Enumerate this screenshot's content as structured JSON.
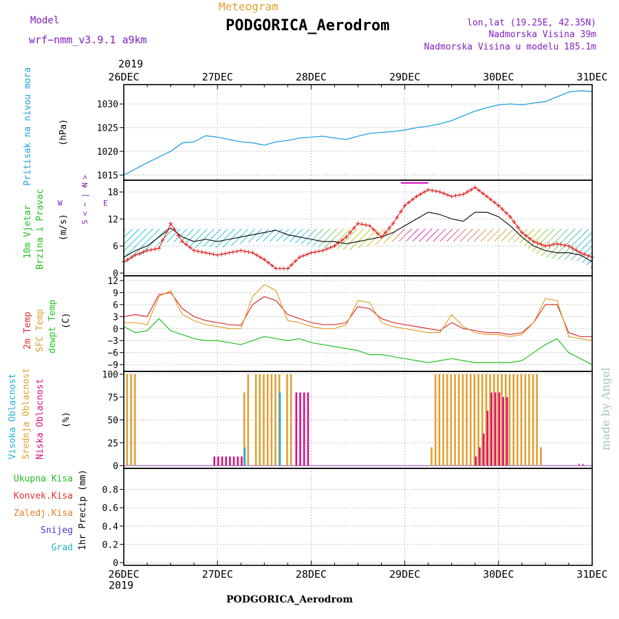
{
  "colors": {
    "pressure": "#1ea0e0",
    "wind_gust": "#000000",
    "wind_10m": "#e02020",
    "temp_2m": "#d83030",
    "temp_sfc": "#e0a030",
    "dewpoint": "#20c020",
    "cloud_high": "#20b0e0",
    "cloud_mid": "#e0a030",
    "cloud_low": "#d81080",
    "title": "#000000",
    "model": "#8020c0",
    "meteogram": "#e0a030",
    "location": "#8020c0",
    "label_green": "#20c020",
    "label_red": "#e03030",
    "label_orange": "#e08030",
    "label_blue": "#4040d0",
    "label_teal": "#20b0c0",
    "watermark": "#a0c8b0"
  },
  "header": {
    "model_label": "Model",
    "model_name": "wrf−nmm_v3.9.1  a9km",
    "meteogram_label": "Meteogram",
    "station_title": "PODGORICA_Aerodrom",
    "coords": "lon,lat (19.25E, 42.35N)",
    "elevation": "Nadmorska Visina 39m",
    "model_elevation": "Nadmorska Visina u modelu 185.1m"
  },
  "footer": {
    "station_title": "PODGORICA_Aerodrom",
    "watermark": "made by Angel"
  },
  "time_axis": {
    "year_top": "2019",
    "year_bottom": "2019",
    "days": [
      "26DEC",
      "27DEC",
      "28DEC",
      "29DEC",
      "30DEC",
      "31DEC"
    ]
  },
  "panel_labels": {
    "pressure": {
      "name": "Pritisak na nivou mora",
      "unit": "(hPa)"
    },
    "wind": {
      "name1": "10m Vjetar",
      "name2": "Brzina i Pravac",
      "unit": "(m/s)",
      "compass_n": "N",
      "compass_s": "S",
      "compass_w": "W",
      "compass_e": "E",
      "compass_arrows": "< − | − >"
    },
    "temp": {
      "t2m": "2m Temp",
      "sfc": "SFC Temp",
      "dew": "dewpt Temp",
      "unit": "(C)"
    },
    "cloud": {
      "high": "Visoka Oblacnost",
      "mid": "Srednja Oblacnost",
      "low": "Niska Oblacnost",
      "unit": "(%)"
    },
    "precip": {
      "total": "Ukupna Kisa",
      "conv": "Konvek.Kisa",
      "freeze": "Zaledj.Kisa",
      "snow": "Snijeg",
      "hail": "Grad",
      "unit": "1hr Precip (mm)"
    }
  },
  "chart_data": [
    {
      "type": "line",
      "panel": "pressure",
      "ylabel": "(hPa)",
      "ylim": [
        1014.5,
        1033.5
      ],
      "yticks": [
        1015,
        1020,
        1025,
        1030
      ],
      "x_hours": [
        0,
        3,
        6,
        9,
        12,
        15,
        18,
        21,
        24,
        27,
        30,
        33,
        36,
        39,
        42,
        45,
        48,
        51,
        54,
        57,
        60,
        63,
        66,
        69,
        72,
        75,
        78,
        81,
        84,
        87,
        90,
        93,
        96,
        99,
        102,
        105,
        108,
        111,
        114,
        117,
        120
      ],
      "series": [
        {
          "values": [
            1015.0,
            1016.3,
            1017.6,
            1018.8,
            1020.0,
            1021.8,
            1022.0,
            1023.3,
            1023.0,
            1022.5,
            1022.0,
            1021.8,
            1021.3,
            1022.0,
            1022.3,
            1022.8,
            1023.0,
            1023.2,
            1022.8,
            1022.5,
            1023.2,
            1023.8,
            1024.0,
            1024.2,
            1024.5,
            1025.0,
            1025.3,
            1025.8,
            1026.5,
            1027.5,
            1028.5,
            1029.2,
            1029.8,
            1030.0,
            1029.8,
            1030.2,
            1030.5,
            1031.5,
            1032.5,
            1032.8,
            1032.6
          ]
        }
      ]
    },
    {
      "type": "line",
      "panel": "wind",
      "ylabel": "(m/s)",
      "ylim": [
        0,
        20
      ],
      "yticks": [
        0,
        6,
        12,
        18
      ],
      "x_hours": [
        0,
        3,
        6,
        9,
        12,
        15,
        18,
        21,
        24,
        27,
        30,
        33,
        36,
        39,
        42,
        45,
        48,
        51,
        54,
        57,
        60,
        63,
        66,
        69,
        72,
        75,
        78,
        81,
        84,
        87,
        90,
        93,
        96,
        99,
        102,
        105,
        108,
        111,
        114,
        117,
        120
      ],
      "series": [
        {
          "name": "10m Vjetar",
          "values": [
            2.5,
            4.0,
            5.0,
            5.5,
            11.0,
            7.0,
            5.0,
            4.5,
            4.0,
            4.5,
            5.0,
            4.5,
            3.0,
            1.0,
            1.0,
            3.5,
            4.5,
            5.0,
            6.0,
            8.0,
            11.0,
            10.5,
            8.0,
            11.0,
            15.0,
            17.0,
            18.5,
            18.0,
            17.0,
            17.5,
            19.0,
            17.0,
            15.0,
            12.5,
            9.0,
            7.0,
            6.0,
            6.5,
            6.0,
            4.5,
            3.5
          ]
        },
        {
          "name": "gust",
          "values": [
            3.5,
            5.0,
            6.0,
            8.0,
            10.0,
            8.0,
            7.0,
            7.5,
            7.0,
            7.5,
            8.0,
            8.5,
            9.0,
            9.5,
            8.5,
            8.0,
            7.5,
            7.0,
            7.0,
            6.5,
            7.0,
            7.5,
            8.0,
            9.0,
            10.5,
            12.0,
            13.5,
            13.0,
            12.0,
            11.5,
            13.5,
            13.5,
            12.5,
            10.5,
            8.0,
            6.0,
            5.0,
            4.5,
            4.5,
            4.0,
            2.5
          ]
        }
      ]
    },
    {
      "type": "line",
      "panel": "temperature",
      "ylabel": "(C)",
      "ylim": [
        -10,
        12.5
      ],
      "yticks": [
        -9,
        -6,
        -3,
        0,
        3,
        6,
        9,
        12
      ],
      "x_hours": [
        0,
        3,
        6,
        9,
        12,
        15,
        18,
        21,
        24,
        27,
        30,
        33,
        36,
        39,
        42,
        45,
        48,
        51,
        54,
        57,
        60,
        63,
        66,
        69,
        72,
        75,
        78,
        81,
        84,
        87,
        90,
        93,
        96,
        99,
        102,
        105,
        108,
        111,
        114,
        117,
        120
      ],
      "series": [
        {
          "name": "2m Temp",
          "values": [
            3.0,
            3.5,
            3.0,
            8.5,
            9.0,
            5.0,
            3.0,
            2.0,
            1.5,
            1.0,
            0.8,
            6.0,
            8.0,
            7.0,
            3.5,
            2.5,
            1.5,
            1.0,
            1.0,
            1.5,
            5.5,
            5.0,
            2.5,
            1.5,
            1.0,
            0.5,
            0.0,
            -0.5,
            1.5,
            0.0,
            -0.5,
            -1.0,
            -1.0,
            -1.5,
            -1.0,
            1.5,
            6.0,
            6.0,
            -1.0,
            -2.0,
            -2.0
          ]
        },
        {
          "name": "SFC Temp",
          "values": [
            1.5,
            1.5,
            1.0,
            8.0,
            9.5,
            3.5,
            2.0,
            1.0,
            0.5,
            0.0,
            0.0,
            8.0,
            11.0,
            9.5,
            2.0,
            1.5,
            0.5,
            0.0,
            0.0,
            1.0,
            7.0,
            6.5,
            1.5,
            0.5,
            0.0,
            -0.5,
            -1.0,
            -1.0,
            3.5,
            0.5,
            -1.0,
            -1.5,
            -1.5,
            -2.0,
            -1.5,
            1.5,
            7.5,
            7.0,
            -2.0,
            -2.5,
            -3.0
          ]
        },
        {
          "name": "dewpt Temp",
          "values": [
            0.5,
            -1.0,
            -0.5,
            2.5,
            -0.5,
            -1.5,
            -2.5,
            -3.0,
            -3.0,
            -3.5,
            -4.0,
            -3.0,
            -2.0,
            -2.5,
            -3.0,
            -2.5,
            -3.5,
            -4.0,
            -4.5,
            -5.0,
            -5.5,
            -6.5,
            -6.5,
            -7.0,
            -7.5,
            -8.0,
            -8.5,
            -8.0,
            -7.5,
            -8.0,
            -8.5,
            -8.5,
            -8.5,
            -8.5,
            -8.0,
            -6.0,
            -4.0,
            -2.5,
            -6.0,
            -7.5,
            -9.0
          ]
        }
      ]
    },
    {
      "type": "bar",
      "panel": "cloud",
      "ylabel": "(%)",
      "ylim": [
        0,
        100
      ],
      "yticks": [
        0,
        25,
        50,
        75,
        100
      ],
      "x_hours": [
        1,
        2,
        3,
        4,
        5,
        17,
        18,
        19,
        20,
        21,
        22,
        23,
        24,
        25,
        26,
        27,
        28,
        29,
        30,
        31,
        32,
        33,
        34,
        35,
        36,
        37,
        38,
        39,
        40,
        41,
        42,
        43,
        44,
        45,
        46,
        47,
        48,
        49,
        50,
        51,
        52,
        53,
        54,
        55,
        56,
        57,
        58,
        59,
        60,
        61,
        62,
        63,
        64,
        65,
        66,
        67,
        68,
        69,
        70,
        71,
        72,
        73,
        74,
        75,
        76,
        77,
        78,
        79,
        80,
        81,
        82,
        83,
        84,
        85,
        86,
        87,
        88,
        89,
        90,
        91,
        92,
        93,
        94,
        95,
        96,
        97,
        98,
        99,
        100,
        101,
        102,
        103,
        104,
        105,
        106,
        107,
        108,
        109,
        110,
        111,
        112,
        113,
        114,
        115,
        116,
        117
      ],
      "series": [
        {
          "name": "Visoka Oblacnost",
          "values": [
            0,
            0,
            0,
            0,
            0,
            0,
            0,
            0,
            0,
            0,
            0,
            0,
            0,
            0,
            0,
            0,
            0,
            0,
            0,
            20,
            0,
            0,
            0,
            0,
            0,
            0,
            0,
            0,
            80,
            0,
            0,
            0,
            0,
            0,
            0,
            0,
            0,
            0,
            0,
            0,
            0,
            0,
            0,
            0,
            0,
            0,
            0,
            0,
            0,
            0,
            0,
            0,
            0,
            0,
            0,
            0,
            0,
            0,
            0,
            0,
            0,
            0,
            0,
            0,
            0,
            0,
            0,
            0,
            0,
            0,
            0,
            0,
            0,
            0,
            0,
            0,
            0,
            0,
            0,
            0,
            0,
            0,
            0,
            0,
            0,
            0,
            0,
            0,
            0,
            0,
            0,
            0,
            0,
            0,
            0,
            0,
            0,
            0,
            0,
            0,
            0,
            0,
            0,
            0,
            0,
            0
          ]
        },
        {
          "name": "Srednja Oblacnost",
          "values": [
            100,
            100,
            100,
            0,
            0,
            0,
            0,
            0,
            0,
            0,
            0,
            0,
            0,
            0,
            0,
            0,
            0,
            0,
            0,
            80,
            100,
            0,
            100,
            100,
            100,
            100,
            100,
            100,
            100,
            0,
            100,
            100,
            0,
            0,
            0,
            0,
            0,
            0,
            0,
            0,
            0,
            0,
            0,
            0,
            0,
            0,
            0,
            0,
            0,
            0,
            0,
            0,
            0,
            0,
            0,
            0,
            0,
            0,
            0,
            0,
            0,
            0,
            0,
            0,
            0,
            0,
            0,
            20,
            100,
            100,
            100,
            100,
            100,
            100,
            100,
            100,
            100,
            100,
            100,
            100,
            100,
            100,
            100,
            100,
            100,
            100,
            100,
            100,
            100,
            100,
            100,
            100,
            100,
            100,
            100,
            20,
            0,
            0,
            0,
            0,
            0,
            0,
            0,
            0,
            0,
            0
          ]
        },
        {
          "name": "Niska Oblacnost",
          "values": [
            0,
            0,
            0,
            0,
            0,
            0,
            0,
            0,
            0,
            0,
            0,
            10,
            10,
            10,
            10,
            10,
            10,
            10,
            10,
            0,
            0,
            0,
            0,
            0,
            0,
            0,
            0,
            0,
            0,
            0,
            0,
            0,
            80,
            80,
            80,
            80,
            0,
            0,
            0,
            0,
            0,
            0,
            0,
            0,
            0,
            0,
            0,
            0,
            0,
            0,
            0,
            0,
            0,
            0,
            0,
            0,
            0,
            0,
            0,
            0,
            0,
            0,
            0,
            0,
            0,
            0,
            0,
            0,
            0,
            0,
            0,
            0,
            0,
            0,
            0,
            0,
            0,
            0,
            10,
            20,
            35,
            60,
            80,
            80,
            80,
            75,
            75,
            0,
            0,
            0,
            0,
            0,
            0,
            0,
            0,
            0,
            0,
            0,
            0,
            0,
            0,
            0,
            0,
            0,
            0,
            0
          ]
        }
      ]
    },
    {
      "type": "bar",
      "panel": "precip",
      "ylabel": "1hr Precip (mm)",
      "ylim": [
        0,
        1
      ],
      "yticks": [
        0,
        0.2,
        0.4,
        0.6,
        0.8
      ],
      "series": [
        {
          "name": "Ukupna Kisa",
          "values": []
        }
      ]
    }
  ]
}
